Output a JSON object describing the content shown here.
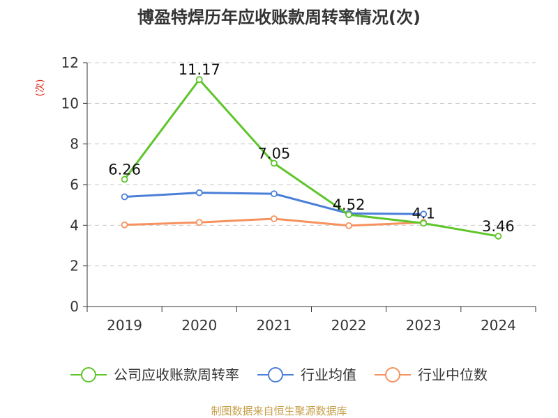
{
  "chart_data": {
    "type": "line",
    "title": "博盈特焊历年应收账款周转率情况(次)",
    "ylabel": "(次)",
    "xlabel": "",
    "ylim": [
      0,
      12
    ],
    "yticks": [
      0,
      2,
      4,
      6,
      8,
      10,
      12
    ],
    "categories": [
      "2019",
      "2020",
      "2021",
      "2022",
      "2023",
      "2024"
    ],
    "grid": true,
    "legend_position": "bottom",
    "series": [
      {
        "name": "公司应收账款周转率",
        "color": "#5ec52b",
        "values": [
          6.26,
          11.17,
          7.05,
          4.52,
          4.1,
          3.46
        ],
        "labels": [
          "6.26",
          "11.17",
          "7.05",
          "4.52",
          "4.1",
          "3.46"
        ]
      },
      {
        "name": "行业均值",
        "color": "#4a7fd8",
        "values": [
          5.4,
          5.6,
          5.55,
          4.58,
          4.55,
          null
        ]
      },
      {
        "name": "行业中位数",
        "color": "#f5925d",
        "values": [
          4.02,
          4.14,
          4.32,
          3.98,
          4.14,
          null
        ]
      }
    ],
    "source": "制图数据来自恒生聚源数据库"
  }
}
